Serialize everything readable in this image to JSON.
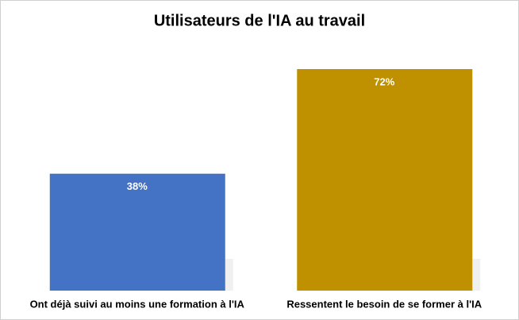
{
  "chart_data": {
    "type": "bar",
    "title": "Utilisateurs de l'IA au travail",
    "categories": [
      "Ont déjà suivi au moins une formation à l'IA",
      "Ressentent le besoin de se former à l'IA"
    ],
    "values": [
      38,
      72
    ],
    "value_labels": [
      "38%",
      "72%"
    ],
    "colors": [
      "#4472c4",
      "#bf9000"
    ]
  }
}
